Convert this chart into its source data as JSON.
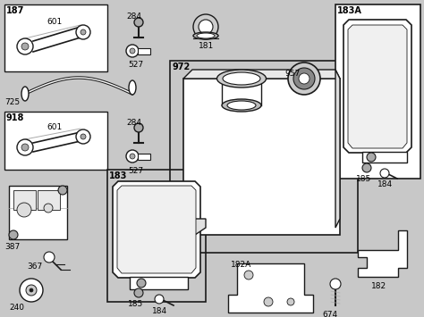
{
  "bg_color": "#c8c8c8",
  "lc": "#1a1a1a",
  "white": "#ffffff",
  "gray": "#aaaaaa",
  "figsize": [
    4.74,
    3.55
  ],
  "dpi": 100
}
